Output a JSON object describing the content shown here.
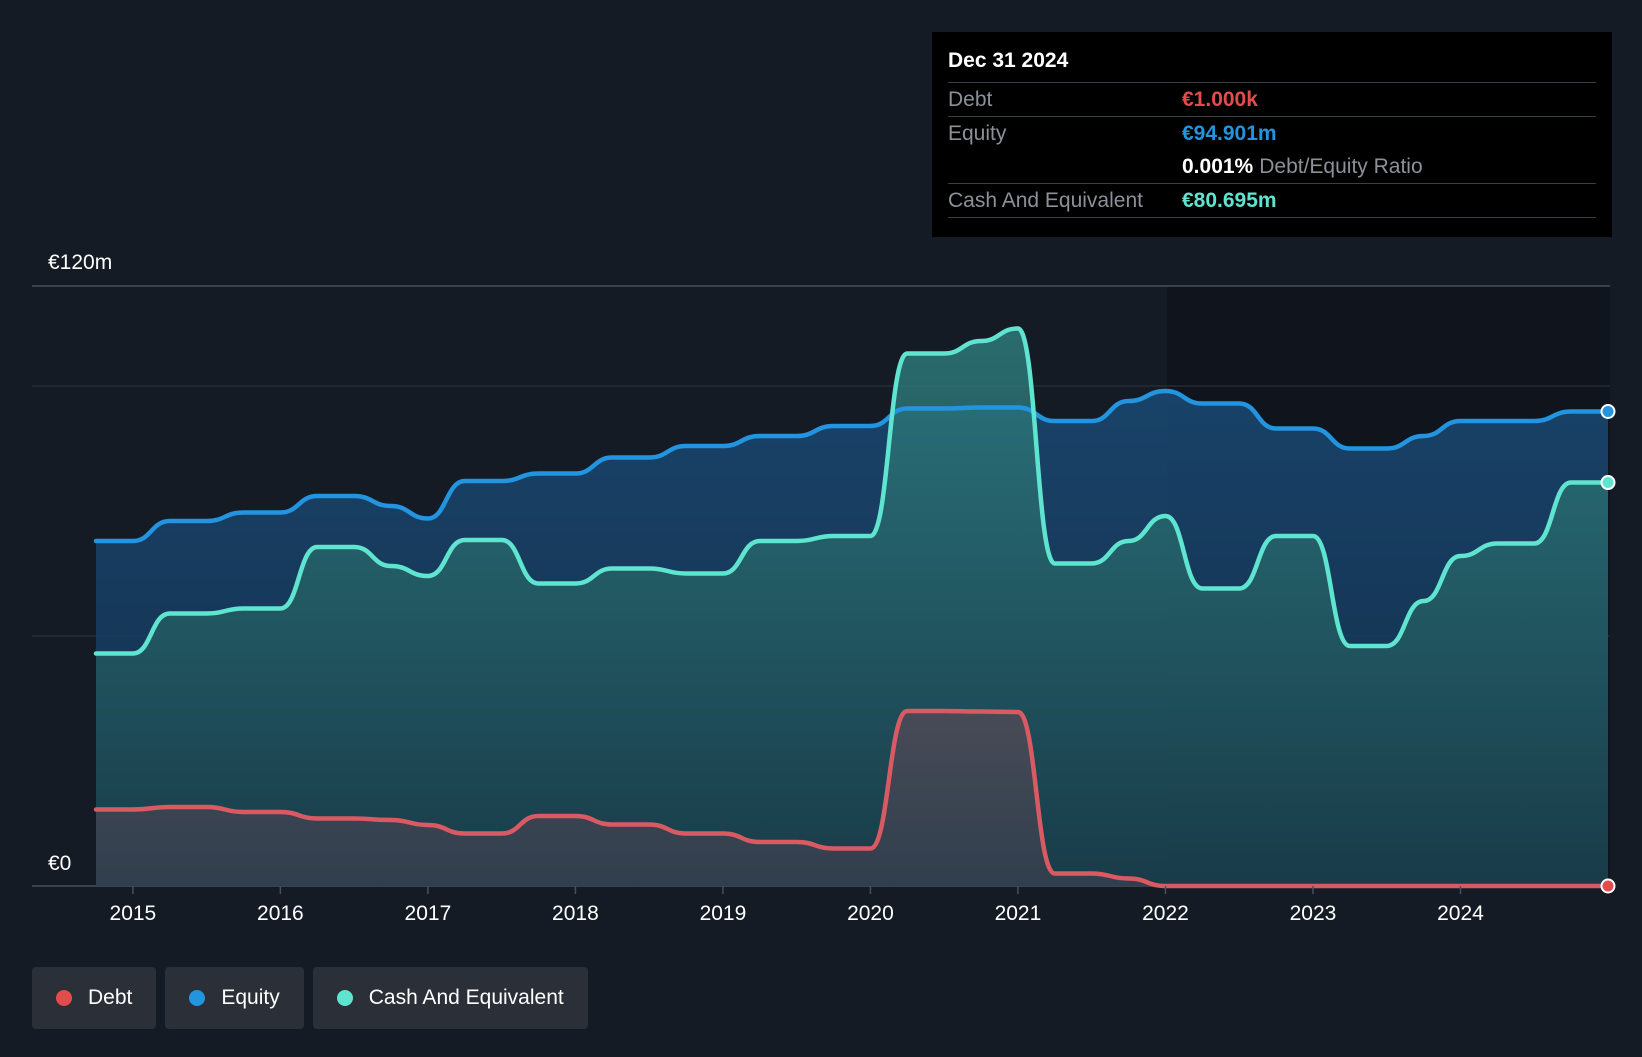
{
  "tooltip": {
    "date": "Dec 31 2024",
    "debt_label": "Debt",
    "debt_value": "€1.000k",
    "equity_label": "Equity",
    "equity_value": "€94.901m",
    "ratio_value": "0.001%",
    "ratio_label": "Debt/Equity Ratio",
    "cash_label": "Cash And Equivalent",
    "cash_value": "€80.695m"
  },
  "legend": [
    {
      "label": "Debt",
      "color": "#e24c4c"
    },
    {
      "label": "Equity",
      "color": "#2394df"
    },
    {
      "label": "Cash And Equivalent",
      "color": "#5fe4d0"
    }
  ],
  "colors": {
    "debt": "#e24c4c",
    "equity": "#2394df",
    "cash": "#5fe4d0",
    "background": "#151b24"
  },
  "chart_data": {
    "type": "area",
    "y_labels": [
      "€120m",
      "€0"
    ],
    "ylim": [
      0,
      120
    ],
    "xlim": [
      2014.75,
      2025.0
    ],
    "x_ticks": [
      2015,
      2016,
      2017,
      2018,
      2019,
      2020,
      2021,
      2022,
      2023,
      2024
    ],
    "grid": true,
    "legend_position": "bottom-left",
    "series": [
      {
        "name": "Equity",
        "points": [
          [
            2014.75,
            69.0
          ],
          [
            2015.0,
            69.0
          ],
          [
            2015.25,
            73.0
          ],
          [
            2015.5,
            73.0
          ],
          [
            2015.75,
            74.7
          ],
          [
            2016.0,
            74.7
          ],
          [
            2016.25,
            78.0
          ],
          [
            2016.5,
            78.0
          ],
          [
            2016.75,
            76.0
          ],
          [
            2017.0,
            73.5
          ],
          [
            2017.25,
            81.0
          ],
          [
            2017.5,
            81.0
          ],
          [
            2017.75,
            82.5
          ],
          [
            2018.0,
            82.5
          ],
          [
            2018.25,
            85.7
          ],
          [
            2018.5,
            85.7
          ],
          [
            2018.75,
            88.0
          ],
          [
            2019.0,
            88.0
          ],
          [
            2019.25,
            90.0
          ],
          [
            2019.5,
            90.0
          ],
          [
            2019.75,
            92.0
          ],
          [
            2020.0,
            92.0
          ],
          [
            2020.25,
            95.5
          ],
          [
            2020.5,
            95.5
          ],
          [
            2020.75,
            95.7
          ],
          [
            2021.0,
            95.7
          ],
          [
            2021.25,
            93.0
          ],
          [
            2021.5,
            93.0
          ],
          [
            2021.75,
            97.0
          ],
          [
            2022.0,
            99.0
          ],
          [
            2022.25,
            96.5
          ],
          [
            2022.5,
            96.5
          ],
          [
            2022.75,
            91.5
          ],
          [
            2023.0,
            91.5
          ],
          [
            2023.25,
            87.5
          ],
          [
            2023.5,
            87.5
          ],
          [
            2023.75,
            90.0
          ],
          [
            2024.0,
            93.0
          ],
          [
            2024.25,
            93.0
          ],
          [
            2024.5,
            93.0
          ],
          [
            2024.75,
            94.9
          ],
          [
            2025.0,
            94.901
          ]
        ]
      },
      {
        "name": "Cash And Equivalent",
        "points": [
          [
            2014.75,
            46.5
          ],
          [
            2015.0,
            46.5
          ],
          [
            2015.25,
            54.5
          ],
          [
            2015.5,
            54.5
          ],
          [
            2015.75,
            55.5
          ],
          [
            2016.0,
            55.5
          ],
          [
            2016.25,
            67.8
          ],
          [
            2016.5,
            67.8
          ],
          [
            2016.75,
            64.0
          ],
          [
            2017.0,
            62.0
          ],
          [
            2017.25,
            69.2
          ],
          [
            2017.5,
            69.2
          ],
          [
            2017.75,
            60.5
          ],
          [
            2018.0,
            60.5
          ],
          [
            2018.25,
            63.5
          ],
          [
            2018.5,
            63.5
          ],
          [
            2018.75,
            62.5
          ],
          [
            2019.0,
            62.5
          ],
          [
            2019.25,
            69.0
          ],
          [
            2019.5,
            69.0
          ],
          [
            2019.75,
            70.0
          ],
          [
            2020.0,
            70.0
          ],
          [
            2020.25,
            106.5
          ],
          [
            2020.5,
            106.5
          ],
          [
            2020.75,
            109.0
          ],
          [
            2021.0,
            111.5
          ],
          [
            2021.25,
            64.5
          ],
          [
            2021.5,
            64.5
          ],
          [
            2021.75,
            69.0
          ],
          [
            2022.0,
            74.0
          ],
          [
            2022.25,
            59.5
          ],
          [
            2022.5,
            59.5
          ],
          [
            2022.75,
            70.0
          ],
          [
            2023.0,
            70.0
          ],
          [
            2023.25,
            48.0
          ],
          [
            2023.5,
            48.0
          ],
          [
            2023.75,
            57.0
          ],
          [
            2024.0,
            66.0
          ],
          [
            2024.25,
            68.5
          ],
          [
            2024.5,
            68.5
          ],
          [
            2024.75,
            80.7
          ],
          [
            2025.0,
            80.695
          ]
        ]
      },
      {
        "name": "Debt",
        "points": [
          [
            2014.75,
            15.3
          ],
          [
            2015.0,
            15.3
          ],
          [
            2015.25,
            15.8
          ],
          [
            2015.5,
            15.8
          ],
          [
            2015.75,
            14.8
          ],
          [
            2016.0,
            14.8
          ],
          [
            2016.25,
            13.5
          ],
          [
            2016.5,
            13.5
          ],
          [
            2016.75,
            13.2
          ],
          [
            2017.0,
            12.2
          ],
          [
            2017.25,
            10.5
          ],
          [
            2017.5,
            10.5
          ],
          [
            2017.75,
            14.0
          ],
          [
            2018.0,
            14.0
          ],
          [
            2018.25,
            12.3
          ],
          [
            2018.5,
            12.3
          ],
          [
            2018.75,
            10.5
          ],
          [
            2019.0,
            10.5
          ],
          [
            2019.25,
            8.8
          ],
          [
            2019.5,
            8.8
          ],
          [
            2019.75,
            7.5
          ],
          [
            2020.0,
            7.5
          ],
          [
            2020.25,
            35.0
          ],
          [
            2020.5,
            35.0
          ],
          [
            2020.75,
            34.9
          ],
          [
            2021.0,
            34.8
          ],
          [
            2021.25,
            2.5
          ],
          [
            2021.5,
            2.5
          ],
          [
            2021.75,
            1.5
          ],
          [
            2022.0,
            0.001
          ],
          [
            2022.5,
            0.001
          ],
          [
            2023.0,
            0.001
          ],
          [
            2023.5,
            0.001
          ],
          [
            2024.0,
            0.001
          ],
          [
            2024.5,
            0.001
          ],
          [
            2025.0,
            0.001
          ]
        ]
      }
    ]
  }
}
